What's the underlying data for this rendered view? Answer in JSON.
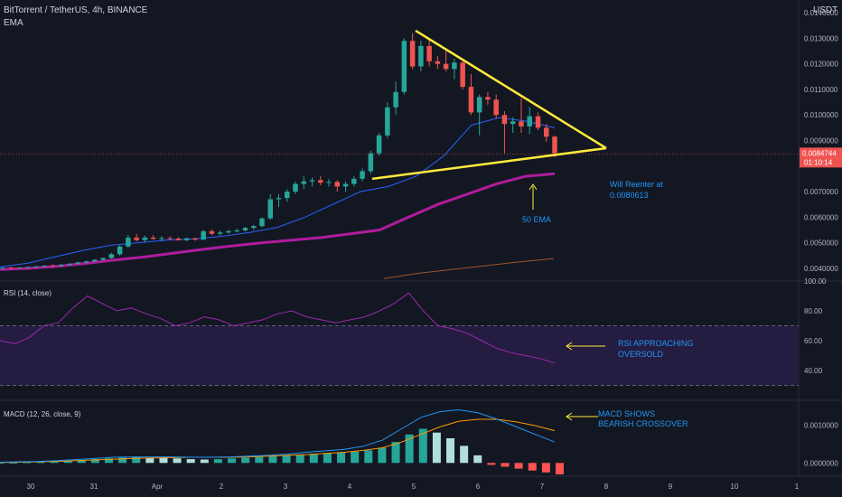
{
  "header": {
    "symbol": "BitTorrent / TetherUS, 4h, BINANCE",
    "indicator": "EMA",
    "currency": "USDT"
  },
  "colors": {
    "background": "#131722",
    "up": "#26a69a",
    "down": "#ef5350",
    "ema_thick": "#b01c9c",
    "ema_thin": "#2962ff",
    "ema_slow": "#a0522d",
    "triangle": "#ffeb3b",
    "annotation": "#2196f3",
    "rsi_band": "#2a1e4a",
    "rsi_line": "#9c27b0",
    "macd_line": "#2196f3",
    "signal_line": "#ff9800"
  },
  "chart_data": [
    {
      "type": "candlestick",
      "name": "price",
      "y_ticks": [
        "0.0140000",
        "0.0130000",
        "0.0120000",
        "0.0110000",
        "0.0100000",
        "0.0090000",
        "0.0070000",
        "0.0060000",
        "0.0050000",
        "0.0040000"
      ],
      "current_price": "0.0084744",
      "countdown": "01:10:14",
      "ylim": [
        0.0035,
        0.0145
      ],
      "candles": [
        [
          0.004,
          0.00405,
          0.00397,
          0.00402
        ],
        [
          0.00402,
          0.00406,
          0.00399,
          0.00401
        ],
        [
          0.00401,
          0.00404,
          0.00398,
          0.00403
        ],
        [
          0.00403,
          0.00408,
          0.004,
          0.00404
        ],
        [
          0.00404,
          0.0041,
          0.00401,
          0.00407
        ],
        [
          0.00407,
          0.00413,
          0.00404,
          0.0041
        ],
        [
          0.0041,
          0.00415,
          0.00406,
          0.00409
        ],
        [
          0.00409,
          0.00416,
          0.00407,
          0.00414
        ],
        [
          0.00414,
          0.0042,
          0.0041,
          0.00418
        ],
        [
          0.00418,
          0.00426,
          0.00414,
          0.00423
        ],
        [
          0.00423,
          0.0043,
          0.00418,
          0.00427
        ],
        [
          0.00427,
          0.00436,
          0.00424,
          0.00433
        ],
        [
          0.00433,
          0.00442,
          0.0043,
          0.0044
        ],
        [
          0.0044,
          0.0046,
          0.00437,
          0.00455
        ],
        [
          0.00455,
          0.0049,
          0.0045,
          0.00485
        ],
        [
          0.00485,
          0.0053,
          0.0048,
          0.0052
        ],
        [
          0.0052,
          0.00535,
          0.00505,
          0.0051
        ],
        [
          0.0051,
          0.00528,
          0.005,
          0.0052
        ],
        [
          0.0052,
          0.0053,
          0.00512,
          0.00515
        ],
        [
          0.00515,
          0.00525,
          0.00505,
          0.00518
        ],
        [
          0.00518,
          0.00525,
          0.0051,
          0.00516
        ],
        [
          0.00516,
          0.00522,
          0.00508,
          0.0051
        ],
        [
          0.0051,
          0.0052,
          0.00505,
          0.00517
        ],
        [
          0.00517,
          0.0052,
          0.00508,
          0.00512
        ],
        [
          0.00512,
          0.0055,
          0.0051,
          0.00545
        ],
        [
          0.00545,
          0.00552,
          0.0053,
          0.00535
        ],
        [
          0.00535,
          0.00548,
          0.00528,
          0.0054
        ],
        [
          0.0054,
          0.0055,
          0.00535,
          0.00545
        ],
        [
          0.00545,
          0.00555,
          0.0054,
          0.00548
        ],
        [
          0.00548,
          0.00562,
          0.00543,
          0.00558
        ],
        [
          0.00558,
          0.0057,
          0.0055,
          0.00565
        ],
        [
          0.00565,
          0.006,
          0.0056,
          0.00595
        ],
        [
          0.00595,
          0.0069,
          0.0059,
          0.0067
        ],
        [
          0.0067,
          0.0069,
          0.0064,
          0.00675
        ],
        [
          0.00675,
          0.0071,
          0.0066,
          0.007
        ],
        [
          0.007,
          0.0074,
          0.0069,
          0.0073
        ],
        [
          0.0073,
          0.0076,
          0.0071,
          0.0074
        ],
        [
          0.0074,
          0.00755,
          0.0072,
          0.00745
        ],
        [
          0.00745,
          0.0076,
          0.00725,
          0.00735
        ],
        [
          0.00735,
          0.0075,
          0.0072,
          0.00738
        ],
        [
          0.00738,
          0.00745,
          0.007,
          0.0072
        ],
        [
          0.0072,
          0.0074,
          0.007,
          0.0073
        ],
        [
          0.0073,
          0.0076,
          0.0072,
          0.0075
        ],
        [
          0.0075,
          0.0079,
          0.0074,
          0.0078
        ],
        [
          0.0078,
          0.0086,
          0.0077,
          0.0085
        ],
        [
          0.0085,
          0.0093,
          0.0084,
          0.0092
        ],
        [
          0.0092,
          0.0105,
          0.0091,
          0.0103
        ],
        [
          0.0103,
          0.0113,
          0.01,
          0.0109
        ],
        [
          0.0109,
          0.013,
          0.0108,
          0.0129
        ],
        [
          0.0129,
          0.0132,
          0.0118,
          0.0119
        ],
        [
          0.0119,
          0.0129,
          0.0117,
          0.0127
        ],
        [
          0.0127,
          0.01295,
          0.0119,
          0.0121
        ],
        [
          0.0121,
          0.0123,
          0.0118,
          0.012
        ],
        [
          0.012,
          0.0125,
          0.0117,
          0.0118
        ],
        [
          0.0118,
          0.0122,
          0.0114,
          0.01205
        ],
        [
          0.01205,
          0.0122,
          0.011,
          0.0111
        ],
        [
          0.0111,
          0.0116,
          0.01,
          0.0101
        ],
        [
          0.0101,
          0.0108,
          0.0092,
          0.0107
        ],
        [
          0.0107,
          0.0109,
          0.0104,
          0.0106
        ],
        [
          0.0106,
          0.0108,
          0.00985,
          0.01
        ],
        [
          0.01,
          0.01015,
          0.0085,
          0.00965
        ],
        [
          0.00965,
          0.0099,
          0.0093,
          0.00975
        ],
        [
          0.00975,
          0.01065,
          0.0093,
          0.00955
        ],
        [
          0.00955,
          0.0103,
          0.00925,
          0.00995
        ],
        [
          0.00995,
          0.0101,
          0.0094,
          0.0095
        ],
        [
          0.0095,
          0.00965,
          0.00895,
          0.00915
        ],
        [
          0.00915,
          0.0092,
          0.00835,
          0.0085
        ]
      ],
      "ema_thick": [
        0.00395,
        0.004,
        0.00408,
        0.0042,
        0.00433,
        0.00445,
        0.0046,
        0.00475,
        0.00488,
        0.005,
        0.0051,
        0.0052,
        0.00535,
        0.0055,
        0.006,
        0.0065,
        0.0069,
        0.0073,
        0.0076,
        0.0077
      ],
      "ema_thin": [
        0.00405,
        0.0042,
        0.00445,
        0.0047,
        0.0049,
        0.005,
        0.0051,
        0.00515,
        0.00525,
        0.0054,
        0.0056,
        0.006,
        0.0065,
        0.007,
        0.0072,
        0.0076,
        0.0084,
        0.0096,
        0.0099,
        0.00975,
        0.0095
      ],
      "ema_slow": [
        0.0036,
        0.0038,
        0.00395,
        0.0041,
        0.00425,
        0.00438
      ],
      "triangle": {
        "apex_price": 0.0087,
        "top_price": 0.0133,
        "bottom_price": 0.0075
      }
    },
    {
      "type": "line",
      "name": "rsi",
      "label": "RSI (14, close)",
      "y_ticks": [
        "100.00",
        "80.00",
        "60.00",
        "40.00"
      ],
      "ylim": [
        20,
        100
      ],
      "levels": [
        70,
        30
      ],
      "values": [
        60,
        58,
        62,
        70,
        72,
        82,
        90,
        85,
        80,
        82,
        78,
        75,
        70,
        72,
        76,
        74,
        70,
        72,
        74,
        78,
        80,
        76,
        74,
        72,
        74,
        76,
        80,
        85,
        92,
        80,
        70,
        68,
        65,
        60,
        55,
        52,
        50,
        48,
        45
      ]
    },
    {
      "type": "line",
      "name": "macd",
      "label": "MACD (12, 26, close, 9)",
      "y_ticks": [
        "0.0010000",
        "0.0000000"
      ],
      "ylim": [
        -0.00035,
        0.00165
      ],
      "macd": [
        2e-05,
        3e-05,
        4e-05,
        6e-05,
        9e-05,
        0.00012,
        0.00015,
        0.00016,
        0.00016,
        0.00016,
        0.00015,
        0.00015,
        0.00016,
        0.00018,
        0.0002,
        0.00023,
        0.00028,
        0.00032,
        0.00036,
        0.00044,
        0.0006,
        0.0009,
        0.0012,
        0.00135,
        0.0014,
        0.00132,
        0.00115,
        0.00095,
        0.00075,
        0.00055
      ],
      "signal": [
        1e-05,
        2e-05,
        3e-05,
        4e-05,
        6e-05,
        8e-05,
        0.0001,
        0.00012,
        0.00013,
        0.00014,
        0.00015,
        0.00015,
        0.00015,
        0.00016,
        0.00018,
        0.0002,
        0.00022,
        0.00025,
        0.00028,
        0.00033,
        0.0004,
        0.00055,
        0.00075,
        0.00095,
        0.0011,
        0.00115,
        0.00115,
        0.00108,
        0.00098,
        0.00085
      ],
      "histogram": [
        1e-05,
        1e-05,
        2e-05,
        3e-05,
        4e-05,
        6e-05,
        8e-05,
        0.0001,
        0.00012,
        0.00014,
        0.00015,
        0.00014,
        0.00013,
        0.00012,
        0.0001,
        9e-05,
        0.0001,
        0.00012,
        0.00014,
        0.00016,
        0.00018,
        0.0002,
        0.00022,
        0.00024,
        0.00026,
        0.00028,
        0.0003,
        0.00033,
        0.0004,
        0.00055,
        0.00075,
        0.0009,
        0.0008,
        0.00065,
        0.00045,
        0.0002,
        -5e-05,
        -0.0001,
        -0.00015,
        -0.0002,
        -0.00025,
        -0.0003
      ]
    }
  ],
  "x_ticks": [
    "30",
    "31",
    "Apr",
    "2",
    "3",
    "4",
    "5",
    "6",
    "7",
    "8",
    "9",
    "10",
    "1"
  ],
  "annotations": {
    "reenter": "Will Reenter at\n0.0080613",
    "ema50": "50 EMA",
    "rsi": "RSI APPROACHING\nOVERSOLD",
    "macd": "MACD SHOWS\nBEARISH CROSSOVER"
  }
}
